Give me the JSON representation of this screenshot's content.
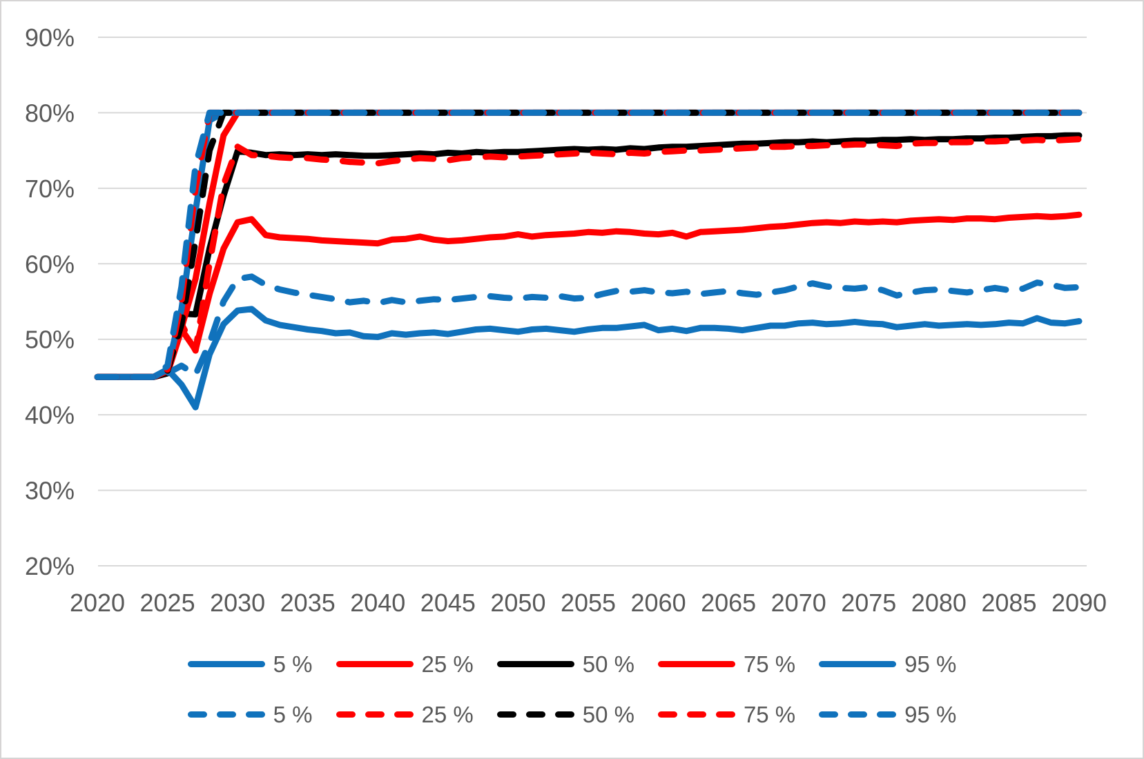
{
  "colors": {
    "blue": "#1072BC",
    "red": "#FF0000",
    "black": "#000000",
    "grid": "#D9D9D9",
    "axis_text": "#595959",
    "canvas_border": "#D6D4D4"
  },
  "chart_data": {
    "type": "line",
    "title": "",
    "xlabel": "",
    "ylabel": "",
    "grid": "horizontal",
    "legend_position": "bottom",
    "x": {
      "start": 2020,
      "end": 2090,
      "step": 1
    },
    "ylim": [
      20,
      90
    ],
    "y_axis": {
      "ticks": [
        "90%",
        "80%",
        "70%",
        "60%",
        "50%",
        "40%",
        "30%",
        "20%"
      ],
      "tick_values": [
        90,
        80,
        70,
        60,
        50,
        40,
        30,
        20
      ],
      "unit": "%"
    },
    "x_axis": {
      "ticks": [
        "2020",
        "2025",
        "2030",
        "2035",
        "2040",
        "2045",
        "2050",
        "2055",
        "2060",
        "2065",
        "2070",
        "2075",
        "2080",
        "2085",
        "2090"
      ]
    },
    "series": [
      {
        "name": "5 %",
        "style": "solid",
        "color": "#1072BC",
        "values": [
          45,
          45,
          45,
          45,
          45,
          46,
          44,
          41,
          48,
          52,
          53.8,
          54,
          52.5,
          51.9,
          51.6,
          51.3,
          51.1,
          50.8,
          50.9,
          50.4,
          50.3,
          50.8,
          50.6,
          50.8,
          50.9,
          50.7,
          51,
          51.3,
          51.4,
          51.2,
          51,
          51.3,
          51.4,
          51.2,
          51,
          51.3,
          51.5,
          51.5,
          51.7,
          51.9,
          51.2,
          51.4,
          51.1,
          51.5,
          51.5,
          51.4,
          51.2,
          51.5,
          51.8,
          51.8,
          52.1,
          52.2,
          52,
          52.1,
          52.3,
          52.1,
          52,
          51.6,
          51.8,
          52,
          51.8,
          51.9,
          52,
          51.9,
          52,
          52.2,
          52.1,
          52.8,
          52.2,
          52.1,
          52.4
        ]
      },
      {
        "name": "25 %",
        "style": "solid",
        "color": "#FF0000",
        "values": [
          45,
          45,
          45,
          45,
          45,
          45.5,
          51.3,
          48.6,
          56,
          62,
          65.5,
          65.9,
          63.8,
          63.5,
          63.4,
          63.3,
          63.1,
          63,
          62.9,
          62.8,
          62.7,
          63.2,
          63.3,
          63.6,
          63.2,
          63,
          63.1,
          63.3,
          63.5,
          63.6,
          63.9,
          63.6,
          63.8,
          63.9,
          64,
          64.2,
          64.1,
          64.3,
          64.2,
          64,
          63.9,
          64.1,
          63.6,
          64.2,
          64.3,
          64.4,
          64.5,
          64.7,
          64.9,
          65,
          65.2,
          65.4,
          65.5,
          65.4,
          65.6,
          65.5,
          65.6,
          65.5,
          65.7,
          65.8,
          65.9,
          65.8,
          66,
          66,
          65.9,
          66.1,
          66.2,
          66.3,
          66.2,
          66.3,
          66.5
        ]
      },
      {
        "name": "50 %",
        "style": "solid",
        "color": "#000000",
        "values": [
          45,
          45,
          45,
          45,
          45,
          45.5,
          53.4,
          53.3,
          62,
          69,
          74.9,
          74.7,
          74.4,
          74.5,
          74.4,
          74.5,
          74.4,
          74.5,
          74.4,
          74.3,
          74.3,
          74.4,
          74.5,
          74.6,
          74.5,
          74.7,
          74.6,
          74.8,
          74.7,
          74.8,
          74.8,
          74.9,
          75,
          75.1,
          75.2,
          75.1,
          75.2,
          75.1,
          75.3,
          75.2,
          75.4,
          75.5,
          75.5,
          75.6,
          75.7,
          75.8,
          75.9,
          75.9,
          76,
          76.1,
          76.1,
          76.2,
          76.1,
          76.2,
          76.3,
          76.3,
          76.4,
          76.4,
          76.5,
          76.4,
          76.5,
          76.5,
          76.6,
          76.6,
          76.7,
          76.7,
          76.8,
          76.9,
          76.9,
          77,
          77
        ]
      },
      {
        "name": "75 %",
        "style": "solid",
        "color": "#FF0000",
        "values": [
          45,
          45,
          45,
          45,
          45,
          45.8,
          51.5,
          58,
          68,
          77,
          80,
          80,
          80,
          80,
          80,
          80,
          80,
          80,
          80,
          80,
          80,
          80,
          80,
          80,
          80,
          80,
          80,
          80,
          80,
          80,
          80,
          80,
          80,
          80,
          80,
          80,
          80,
          80,
          80,
          80,
          80,
          80,
          80,
          80,
          80,
          80,
          80,
          80,
          80,
          80,
          80,
          80,
          80,
          80,
          80,
          80,
          80,
          80,
          80,
          80,
          80,
          80,
          80,
          80,
          80,
          80,
          80,
          80,
          80,
          80,
          80
        ]
      },
      {
        "name": "95 %",
        "style": "solid",
        "color": "#1072BC",
        "values": [
          45,
          45,
          45,
          45,
          45,
          46,
          54,
          67,
          79,
          80,
          80,
          80,
          80,
          80,
          80,
          80,
          80,
          80,
          80,
          80,
          80,
          80,
          80,
          80,
          80,
          80,
          80,
          80,
          80,
          80,
          80,
          80,
          80,
          80,
          80,
          80,
          80,
          80,
          80,
          80,
          80,
          80,
          80,
          80,
          80,
          80,
          80,
          80,
          80,
          80,
          80,
          80,
          80,
          80,
          80,
          80,
          80,
          80,
          80,
          80,
          80,
          80,
          80,
          80,
          80,
          80,
          80,
          80,
          80,
          80,
          80
        ]
      },
      {
        "name": "5 %",
        "style": "dashed",
        "color": "#1072BC",
        "values": [
          45,
          45,
          45,
          45,
          45,
          45.5,
          46.5,
          45.3,
          49.5,
          55,
          58,
          58.3,
          57.2,
          56.6,
          56.2,
          55.9,
          55.6,
          55.3,
          54.9,
          55.1,
          54.8,
          55.2,
          54.9,
          55.1,
          55.3,
          55.2,
          55.4,
          55.6,
          55.7,
          55.5,
          55.4,
          55.6,
          55.5,
          55.7,
          55.4,
          55.5,
          56,
          56.4,
          56.3,
          56.5,
          56.2,
          56.1,
          56.3,
          56,
          56.2,
          56.4,
          56.1,
          55.9,
          56.2,
          56.5,
          57,
          57.4,
          57,
          56.8,
          56.7,
          56.9,
          56.5,
          55.8,
          56.2,
          56.5,
          56.6,
          56.4,
          56.2,
          56.5,
          56.8,
          56.5,
          56.7,
          57.5,
          57.2,
          56.8,
          56.9
        ]
      },
      {
        "name": "25 %",
        "style": "dashed",
        "color": "#FF0000",
        "values": [
          45,
          45,
          45,
          45,
          45,
          45.8,
          52,
          48.5,
          60,
          70.5,
          75.5,
          74.4,
          74.3,
          74.1,
          74,
          74,
          73.8,
          73.7,
          73.5,
          73.4,
          73.3,
          73.6,
          73.8,
          74,
          73.9,
          73.7,
          74,
          74.1,
          74.2,
          74.1,
          74.2,
          74.3,
          74.4,
          74.5,
          74.6,
          74.7,
          74.6,
          74.5,
          74.7,
          74.6,
          74.8,
          74.9,
          75,
          75,
          75.1,
          75.2,
          75.3,
          75.4,
          75.5,
          75.5,
          75.6,
          75.6,
          75.7,
          75.7,
          75.8,
          75.8,
          75.7,
          75.6,
          75.9,
          76,
          76,
          76.1,
          76.1,
          76.2,
          76.2,
          76.3,
          76.3,
          76.4,
          76.3,
          76.4,
          76.5
        ]
      },
      {
        "name": "50 %",
        "style": "dashed",
        "color": "#000000",
        "values": [
          45,
          45,
          45,
          45,
          45,
          45.8,
          52,
          63,
          75,
          80,
          80,
          80,
          80,
          80,
          80,
          80,
          80,
          80,
          80,
          80,
          80,
          80,
          80,
          80,
          80,
          80,
          80,
          80,
          80,
          80,
          80,
          80,
          80,
          80,
          80,
          80,
          80,
          80,
          80,
          80,
          80,
          80,
          80,
          80,
          80,
          80,
          80,
          80,
          80,
          80,
          80,
          80,
          80,
          80,
          80,
          80,
          80,
          80,
          80,
          80,
          80,
          80,
          80,
          80,
          80,
          80,
          80,
          80,
          80,
          80,
          80
        ]
      },
      {
        "name": "75 %",
        "style": "dashed",
        "color": "#FF0000",
        "values": [
          45,
          45,
          45,
          45,
          45,
          46,
          55,
          70,
          80,
          80,
          80,
          80,
          80,
          80,
          80,
          80,
          80,
          80,
          80,
          80,
          80,
          80,
          80,
          80,
          80,
          80,
          80,
          80,
          80,
          80,
          80,
          80,
          80,
          80,
          80,
          80,
          80,
          80,
          80,
          80,
          80,
          80,
          80,
          80,
          80,
          80,
          80,
          80,
          80,
          80,
          80,
          80,
          80,
          80,
          80,
          80,
          80,
          80,
          80,
          80,
          80,
          80,
          80,
          80,
          80,
          80,
          80,
          80,
          80,
          80,
          80
        ]
      },
      {
        "name": "95 %",
        "style": "dashed",
        "color": "#1072BC",
        "values": [
          45,
          45,
          45,
          45,
          45,
          46.5,
          57,
          73,
          80,
          80,
          80,
          80,
          80,
          80,
          80,
          80,
          80,
          80,
          80,
          80,
          80,
          80,
          80,
          80,
          80,
          80,
          80,
          80,
          80,
          80,
          80,
          80,
          80,
          80,
          80,
          80,
          80,
          80,
          80,
          80,
          80,
          80,
          80,
          80,
          80,
          80,
          80,
          80,
          80,
          80,
          80,
          80,
          80,
          80,
          80,
          80,
          80,
          80,
          80,
          80,
          80,
          80,
          80,
          80,
          80,
          80,
          80,
          80,
          80,
          80,
          80
        ]
      }
    ],
    "legend": {
      "rows": [
        {
          "style": "solid",
          "items": [
            {
              "label": "5 %",
              "color": "#1072BC"
            },
            {
              "label": "25 %",
              "color": "#FF0000"
            },
            {
              "label": "50 %",
              "color": "#000000"
            },
            {
              "label": "75 %",
              "color": "#FF0000"
            },
            {
              "label": "95 %",
              "color": "#1072BC"
            }
          ]
        },
        {
          "style": "dashed",
          "items": [
            {
              "label": "5 %",
              "color": "#1072BC"
            },
            {
              "label": "25 %",
              "color": "#FF0000"
            },
            {
              "label": "50 %",
              "color": "#000000"
            },
            {
              "label": "75 %",
              "color": "#FF0000"
            },
            {
              "label": "95 %",
              "color": "#1072BC"
            }
          ]
        }
      ]
    }
  }
}
